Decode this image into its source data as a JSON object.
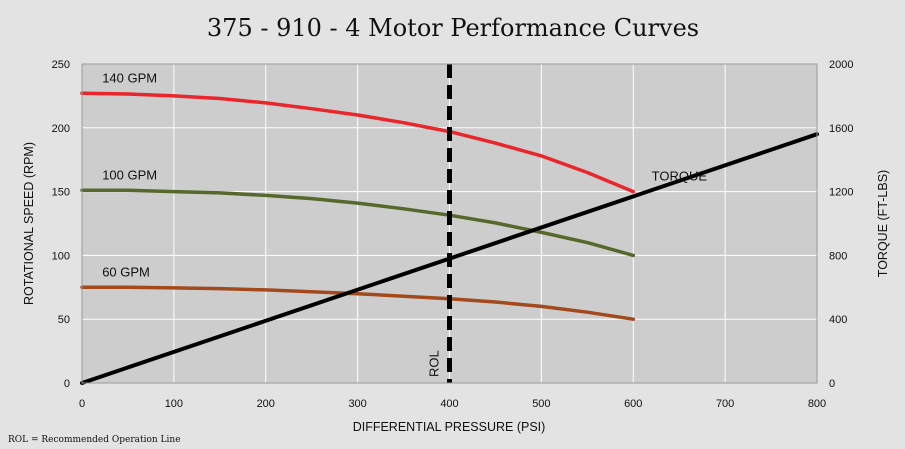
{
  "chart_data": {
    "type": "line",
    "title": "375 - 910 - 4  Motor Performance Curves",
    "xlabel": "DIFFERENTIAL PRESSURE (PSI)",
    "ylabel": "ROTATIONAL SPEED (RPM)",
    "y2label": "TORQUE (FT-LBS)",
    "xlim": [
      0,
      800
    ],
    "ylim": [
      0,
      250
    ],
    "y2lim": [
      0,
      2000
    ],
    "x_ticks": [
      0,
      100,
      200,
      300,
      400,
      500,
      600,
      700,
      800
    ],
    "y_ticks": [
      0,
      50,
      100,
      150,
      200,
      250
    ],
    "y2_ticks": [
      0,
      400,
      800,
      1200,
      1600,
      2000
    ],
    "grid": true,
    "series": [
      {
        "name": "140 GPM",
        "axis": "left",
        "color": "#e8262b",
        "x": [
          0,
          50,
          100,
          150,
          200,
          250,
          300,
          350,
          400,
          450,
          500,
          550,
          600
        ],
        "y": [
          227,
          226.5,
          225,
          223,
          219.5,
          215,
          210,
          204,
          197,
          188,
          178,
          165,
          150
        ]
      },
      {
        "name": "100 GPM",
        "axis": "left",
        "color": "#56692c",
        "x": [
          0,
          50,
          100,
          150,
          200,
          250,
          300,
          350,
          400,
          450,
          500,
          550,
          600
        ],
        "y": [
          151,
          151,
          150,
          149,
          147,
          144.5,
          141,
          136.5,
          131.5,
          125.5,
          118,
          110,
          100
        ]
      },
      {
        "name": "60 GPM",
        "axis": "left",
        "color": "#a34a1c",
        "x": [
          0,
          50,
          100,
          150,
          200,
          250,
          300,
          350,
          400,
          450,
          500,
          550,
          600
        ],
        "y": [
          75,
          75,
          74.5,
          74,
          73,
          71.5,
          70,
          68,
          66,
          63.5,
          60,
          55.5,
          50
        ]
      },
      {
        "name": "TORQUE",
        "axis": "right",
        "color": "#000000",
        "x": [
          0,
          800
        ],
        "y": [
          0,
          1560
        ]
      }
    ],
    "reference_line": {
      "x": 400,
      "label": "ROL",
      "style": "dashed",
      "color": "#000000"
    }
  },
  "footnote": "ROL = Recommended Operation Line"
}
